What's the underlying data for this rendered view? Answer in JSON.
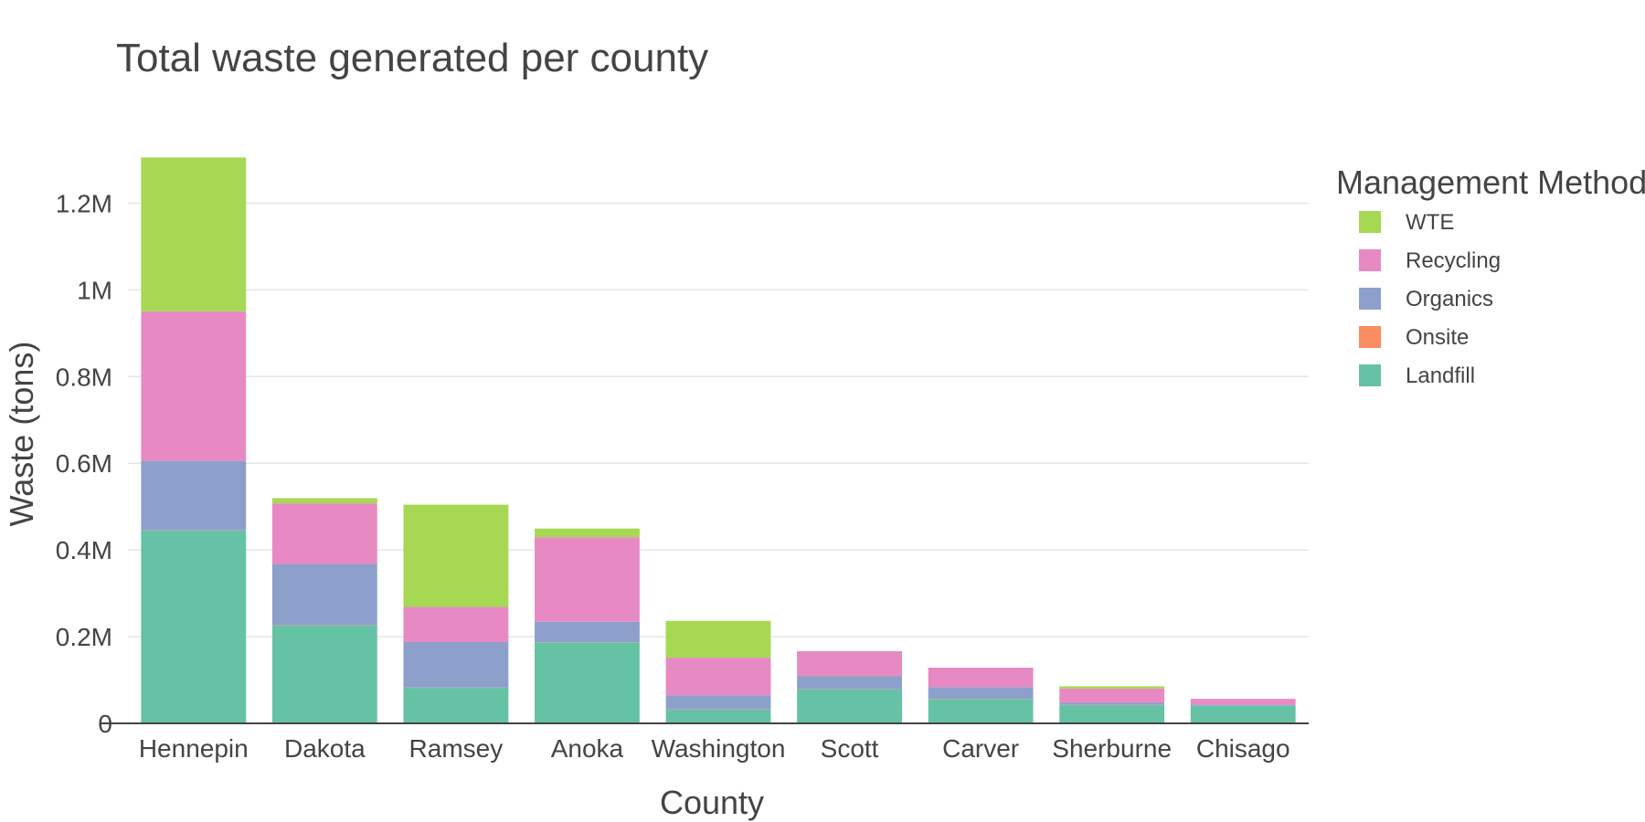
{
  "chart_data": {
    "type": "bar",
    "stacked": true,
    "title": "Total waste generated per county",
    "xlabel": "County",
    "ylabel": "Waste (tons)",
    "ylim": [
      0,
      1300000
    ],
    "yticks": [
      0,
      200000,
      400000,
      600000,
      800000,
      1000000,
      1200000
    ],
    "ytick_labels": [
      "0",
      "0.2M",
      "0.4M",
      "0.6M",
      "0.8M",
      "1M",
      "1.2M"
    ],
    "grid": true,
    "legend_title": "Management Method",
    "legend_position": "right",
    "categories": [
      "Hennepin",
      "Dakota",
      "Ramsey",
      "Anoka",
      "Washington",
      "Scott",
      "Carver",
      "Sherburne",
      "Chisago"
    ],
    "series": [
      {
        "name": "Landfill",
        "color": "#66c2a5",
        "values": [
          445000,
          226000,
          82000,
          187000,
          32000,
          78000,
          56000,
          42000,
          40000
        ]
      },
      {
        "name": "Onsite",
        "color": "#fc8d62",
        "values": [
          500,
          500,
          500,
          500,
          500,
          500,
          500,
          500,
          500
        ]
      },
      {
        "name": "Organics",
        "color": "#8da0cb",
        "values": [
          160000,
          141000,
          105000,
          47000,
          32000,
          30000,
          27000,
          5000,
          3000
        ]
      },
      {
        "name": "Recycling",
        "color": "#e78ac3",
        "values": [
          345000,
          140000,
          81000,
          195000,
          87000,
          58000,
          45000,
          33000,
          13000
        ]
      },
      {
        "name": "WTE",
        "color": "#a6d854",
        "values": [
          355000,
          12000,
          236000,
          20000,
          85000,
          0,
          0,
          5000,
          0
        ]
      }
    ],
    "legend_order": [
      "WTE",
      "Recycling",
      "Organics",
      "Onsite",
      "Landfill"
    ]
  }
}
